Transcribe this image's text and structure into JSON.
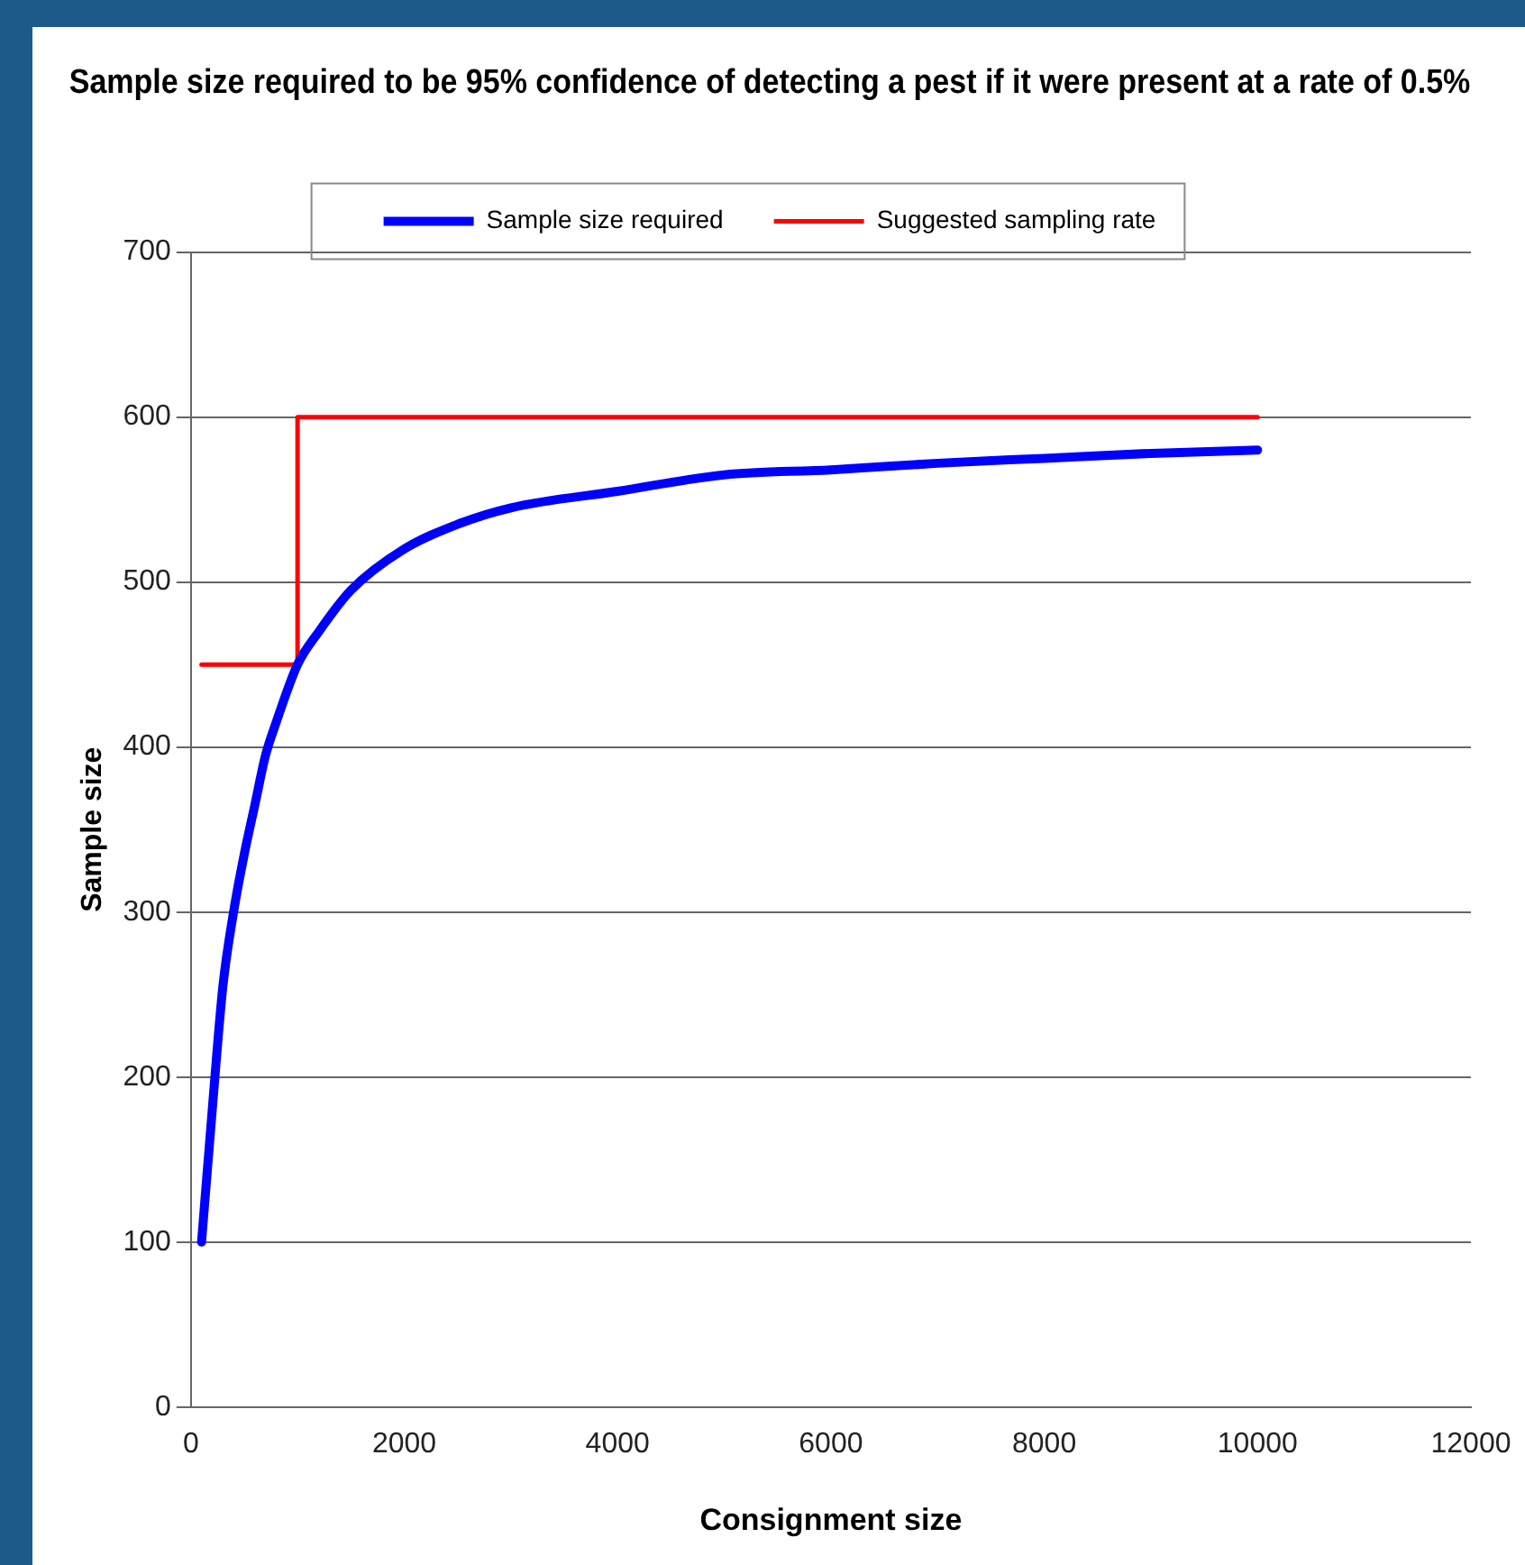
{
  "chart_data": {
    "type": "line",
    "title": "Sample size required to be 95% confidence of detecting a pest if it were present at a rate of 0.5%",
    "xlabel": "Consignment size",
    "ylabel": "Sample size",
    "series": [
      {
        "name": "Sample size required",
        "color": "#0000ff",
        "x": [
          100,
          200,
          300,
          400,
          500,
          600,
          700,
          800,
          1000,
          1200,
          1500,
          2000,
          2500,
          3000,
          4000,
          5000,
          6000,
          7000,
          8000,
          9000,
          10000
        ],
        "values": [
          100,
          180,
          255,
          300,
          335,
          365,
          395,
          415,
          450,
          470,
          495,
          520,
          535,
          545,
          555,
          565,
          568,
          572,
          575,
          578,
          580
        ]
      },
      {
        "name": "Suggested sampling rate",
        "color": "#ff0000",
        "type": "step",
        "x": [
          100,
          1000,
          10000
        ],
        "values": [
          450,
          600,
          600
        ]
      }
    ],
    "xlim": [
      0,
      12000
    ],
    "xticks": [
      0,
      2000,
      4000,
      6000,
      8000,
      10000,
      12000
    ],
    "ylim": [
      0,
      700
    ],
    "yticks": [
      0,
      100,
      200,
      300,
      400,
      500,
      600,
      700
    ],
    "grid": "y",
    "legend": "top",
    "marker": "none",
    "line_style": "solid"
  }
}
